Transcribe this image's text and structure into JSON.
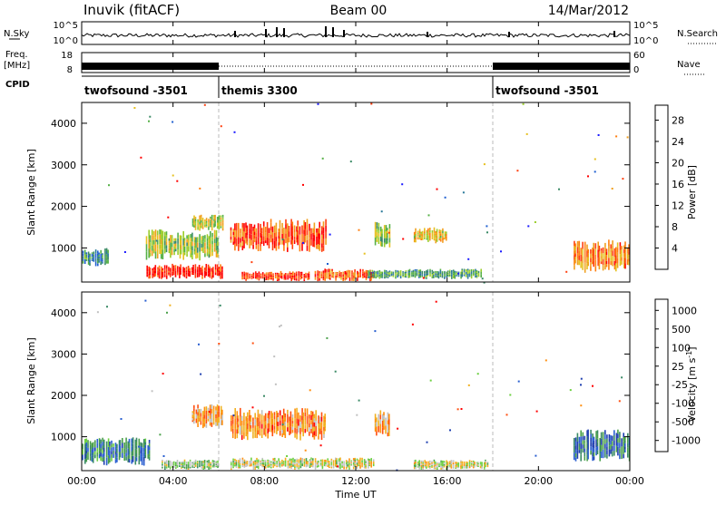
{
  "header": {
    "site": "Inuvik (fitACF)",
    "beam": "Beam 00",
    "date": "14/Mar/2012"
  },
  "side_labels": {
    "nsky": "N.Sky",
    "freq": "Freq.",
    "freq_unit": "[MHz]",
    "cpid": "CPID",
    "nsearch": "N.Search",
    "nave": "Nave"
  },
  "noise_panel": {
    "left_ticks": [
      "10^5",
      "10^0"
    ],
    "right_ticks": [
      "10^5",
      "10^0"
    ]
  },
  "freq_panel": {
    "left_ticks": [
      "18",
      "8"
    ],
    "right_ticks": [
      "60",
      "0"
    ]
  },
  "cpid_panel": {
    "segments": [
      {
        "label": "twofsound -3501",
        "start_hr": 0,
        "end_hr": 6
      },
      {
        "label": "themis 3300",
        "start_hr": 6,
        "end_hr": 18
      },
      {
        "label": "twofsound -3501",
        "start_hr": 18,
        "end_hr": 24
      }
    ]
  },
  "time_axis": {
    "title": "Time UT",
    "ticks": [
      "00:00",
      "04:00",
      "08:00",
      "12:00",
      "16:00",
      "20:00",
      "00:00"
    ]
  },
  "chart_data": [
    {
      "type": "heatmap",
      "title": "",
      "xlabel": "Time UT",
      "ylabel": "Slant Range [km]",
      "xlim_hours": [
        0,
        24
      ],
      "ylim": [
        180,
        4500
      ],
      "y_ticks": [
        "1000",
        "2000",
        "3000",
        "4000"
      ],
      "colorbar": {
        "label": "Power [dB]",
        "ticks": [
          "4",
          "8",
          "12",
          "16",
          "20",
          "24",
          "28"
        ],
        "range": [
          0,
          30
        ],
        "colors": [
          "#1a1aff",
          "#1f5fd0",
          "#2a7a9a",
          "#3a8a66",
          "#55b046",
          "#9acd2a",
          "#e6c020",
          "#f0a020",
          "#ff7f10",
          "#ff4010",
          "#ff0000"
        ]
      },
      "echo_regions": [
        {
          "t0": 0.0,
          "t1": 1.2,
          "r0": 550,
          "r1": 1000,
          "level": 0.3
        },
        {
          "t0": 2.8,
          "t1": 6.2,
          "r0": 250,
          "r1": 620,
          "level": 0.95
        },
        {
          "t0": 2.8,
          "t1": 6.0,
          "r0": 700,
          "r1": 1450,
          "level": 0.5
        },
        {
          "t0": 4.8,
          "t1": 6.2,
          "r0": 1400,
          "r1": 1800,
          "level": 0.55
        },
        {
          "t0": 6.5,
          "t1": 10.7,
          "r0": 900,
          "r1": 1700,
          "level": 0.85
        },
        {
          "t0": 7.0,
          "t1": 10.0,
          "r0": 200,
          "r1": 450,
          "level": 0.9
        },
        {
          "t0": 10.2,
          "t1": 12.8,
          "r0": 200,
          "r1": 500,
          "level": 0.8
        },
        {
          "t0": 12.8,
          "t1": 13.5,
          "r0": 1000,
          "r1": 1650,
          "level": 0.45
        },
        {
          "t0": 14.5,
          "t1": 16.0,
          "r0": 1100,
          "r1": 1500,
          "level": 0.6
        },
        {
          "t0": 12.5,
          "t1": 17.5,
          "r0": 250,
          "r1": 500,
          "level": 0.35
        },
        {
          "t0": 21.5,
          "t1": 24.0,
          "r0": 400,
          "r1": 1200,
          "level": 0.75
        }
      ]
    },
    {
      "type": "heatmap",
      "title": "",
      "xlabel": "Time UT",
      "ylabel": "Slant Range [km]",
      "xlim_hours": [
        0,
        24
      ],
      "ylim": [
        180,
        4500
      ],
      "y_ticks": [
        "1000",
        "2000",
        "3000",
        "4000"
      ],
      "colorbar": {
        "label": "Velocity [m s^-1]",
        "ticks": [
          "1000",
          "500",
          "100",
          "25",
          "-25",
          "-100",
          "-500",
          "-1000"
        ],
        "range": [
          -1000,
          1000
        ],
        "colors": [
          "#1f3fb0",
          "#2a5fd0",
          "#3a8a66",
          "#4aa04a",
          "#6cd040",
          "#c0c0c0",
          "#f0b020",
          "#ff8f10",
          "#ff5010",
          "#ff0000"
        ]
      },
      "echo_regions": [
        {
          "t0": 0.0,
          "t1": 3.0,
          "r0": 300,
          "r1": 1000,
          "level": 0.25
        },
        {
          "t0": 3.5,
          "t1": 6.0,
          "r0": 200,
          "r1": 450,
          "level": 0.45
        },
        {
          "t0": 4.8,
          "t1": 6.2,
          "r0": 1200,
          "r1": 1800,
          "level": 0.7
        },
        {
          "t0": 6.5,
          "t1": 10.7,
          "r0": 900,
          "r1": 1700,
          "level": 0.75
        },
        {
          "t0": 6.5,
          "t1": 12.8,
          "r0": 200,
          "r1": 500,
          "level": 0.55
        },
        {
          "t0": 12.8,
          "t1": 13.5,
          "r0": 1000,
          "r1": 1650,
          "level": 0.7
        },
        {
          "t0": 14.5,
          "t1": 17.8,
          "r0": 200,
          "r1": 450,
          "level": 0.55
        },
        {
          "t0": 21.5,
          "t1": 24.0,
          "r0": 400,
          "r1": 1200,
          "level": 0.2
        }
      ]
    }
  ]
}
